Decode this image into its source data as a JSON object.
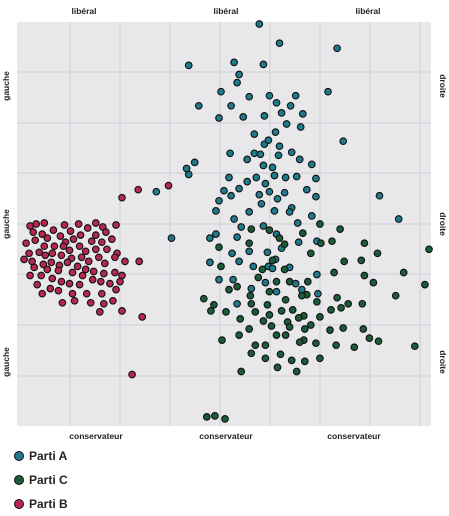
{
  "chart_data": {
    "type": "scatter",
    "xlim": [
      0,
      410
    ],
    "ylim": [
      0,
      400
    ],
    "grid": true,
    "legend_placement": "bottom-left",
    "top_labels": [
      "libéral",
      "libéral",
      "libéral"
    ],
    "bottom_labels": [
      "conservateur",
      "conservateur",
      "conservateur"
    ],
    "left_labels": [
      "gauche",
      "gauche",
      "gauche"
    ],
    "right_labels": [
      "droite",
      "droite",
      "droite"
    ],
    "series": [
      {
        "name": "Parti A",
        "color": "#1f7a8c",
        "points": [
          [
            240,
            398
          ],
          [
            260,
            379
          ],
          [
            317,
            374
          ],
          [
            170,
            357
          ],
          [
            215,
            360
          ],
          [
            220,
            348
          ],
          [
            244,
            358
          ],
          [
            202,
            331
          ],
          [
            218,
            340
          ],
          [
            230,
            326
          ],
          [
            250,
            327
          ],
          [
            257,
            320
          ],
          [
            276,
            327
          ],
          [
            308,
            331
          ],
          [
            180,
            317
          ],
          [
            200,
            305
          ],
          [
            224,
            306
          ],
          [
            212,
            317
          ],
          [
            245,
            307
          ],
          [
            262,
            310
          ],
          [
            271,
            317
          ],
          [
            283,
            309
          ],
          [
            281,
            296
          ],
          [
            267,
            299
          ],
          [
            256,
            291
          ],
          [
            235,
            289
          ],
          [
            245,
            279
          ],
          [
            211,
            270
          ],
          [
            260,
            277
          ],
          [
            235,
            270
          ],
          [
            323,
            282
          ],
          [
            249,
            283
          ],
          [
            228,
            264
          ],
          [
            176,
            261
          ],
          [
            244,
            258
          ],
          [
            253,
            256
          ],
          [
            259,
            268
          ],
          [
            241,
            269
          ],
          [
            272,
            271
          ],
          [
            280,
            264
          ],
          [
            292,
            259
          ],
          [
            277,
            247
          ],
          [
            296,
            245
          ],
          [
            237,
            246
          ],
          [
            246,
            240
          ],
          [
            170,
            249
          ],
          [
            210,
            246
          ],
          [
            168,
            255
          ],
          [
            255,
            248
          ],
          [
            266,
            246
          ],
          [
            205,
            233
          ],
          [
            220,
            235
          ],
          [
            228,
            242
          ],
          [
            240,
            229
          ],
          [
            250,
            232
          ],
          [
            265,
            231
          ],
          [
            287,
            234
          ],
          [
            296,
            227
          ],
          [
            138,
            232
          ],
          [
            200,
            223
          ],
          [
            212,
            228
          ],
          [
            258,
            225
          ],
          [
            272,
            216
          ],
          [
            242,
            220
          ],
          [
            255,
            213
          ],
          [
            215,
            205
          ],
          [
            230,
            212
          ],
          [
            197,
            213
          ],
          [
            270,
            212
          ],
          [
            292,
            208
          ],
          [
            222,
            197
          ],
          [
            244,
            198
          ],
          [
            278,
            201
          ],
          [
            197,
            190
          ],
          [
            257,
            190
          ],
          [
            297,
            183
          ],
          [
            359,
            228
          ],
          [
            378,
            205
          ],
          [
            153,
            186
          ],
          [
            191,
            186
          ],
          [
            218,
            187
          ],
          [
            213,
            171
          ],
          [
            230,
            173
          ],
          [
            248,
            172
          ],
          [
            262,
            176
          ],
          [
            279,
            182
          ],
          [
            256,
            165
          ],
          [
            220,
            163
          ],
          [
            234,
            158
          ],
          [
            249,
            158
          ],
          [
            191,
            162
          ],
          [
            200,
            145
          ],
          [
            270,
            157
          ],
          [
            297,
            150
          ],
          [
            214,
            145
          ],
          [
            246,
            142
          ],
          [
            253,
            156
          ],
          [
            232,
            136
          ],
          [
            282,
            135
          ],
          [
            218,
            121
          ],
          [
            298,
            131
          ],
          [
            257,
            133
          ],
          [
            276,
            141
          ]
        ]
      },
      {
        "name": "Parti C",
        "color": "#1a5c38",
        "points": [
          [
            300,
            200
          ],
          [
            320,
            195
          ],
          [
            232,
            195
          ],
          [
            250,
            194
          ],
          [
            283,
            191
          ],
          [
            230,
            181
          ],
          [
            260,
            186
          ],
          [
            312,
            183
          ],
          [
            200,
            177
          ],
          [
            344,
            181
          ],
          [
            265,
            180
          ],
          [
            291,
            171
          ],
          [
            301,
            181
          ],
          [
            408,
            175
          ],
          [
            357,
            171
          ],
          [
            202,
            158
          ],
          [
            253,
            164
          ],
          [
            324,
            163
          ],
          [
            341,
            164
          ],
          [
            243,
            155
          ],
          [
            265,
            155
          ],
          [
            314,
            152
          ],
          [
            344,
            149
          ],
          [
            353,
            142
          ],
          [
            383,
            152
          ],
          [
            404,
            140
          ],
          [
            218,
            138
          ],
          [
            231,
            129
          ],
          [
            288,
            143
          ],
          [
            239,
            147
          ],
          [
            270,
            143
          ],
          [
            210,
            135
          ],
          [
            257,
            143
          ],
          [
            250,
            133
          ],
          [
            287,
            130
          ],
          [
            317,
            127
          ],
          [
            321,
            117
          ],
          [
            232,
            121
          ],
          [
            266,
            125
          ],
          [
            282,
            129
          ],
          [
            248,
            120
          ],
          [
            236,
            113
          ],
          [
            262,
            114
          ],
          [
            273,
            115
          ],
          [
            297,
            123
          ],
          [
            185,
            126
          ],
          [
            207,
            113
          ],
          [
            328,
            121
          ],
          [
            375,
            129
          ],
          [
            195,
            120
          ],
          [
            250,
            110
          ],
          [
            284,
            109
          ],
          [
            311,
            115
          ],
          [
            342,
            121
          ],
          [
            244,
            104
          ],
          [
            268,
            103
          ],
          [
            279,
            107
          ],
          [
            300,
            108
          ],
          [
            310,
            95
          ],
          [
            230,
            96
          ],
          [
            252,
            99
          ],
          [
            270,
            98
          ],
          [
            285,
            96
          ],
          [
            323,
            97
          ],
          [
            192,
            114
          ],
          [
            221,
            106
          ],
          [
            220,
            90
          ],
          [
            257,
            90
          ],
          [
            266,
            90
          ],
          [
            284,
            85
          ],
          [
            291,
            100
          ],
          [
            343,
            96
          ],
          [
            349,
            87
          ],
          [
            358,
            84
          ],
          [
            203,
            85
          ],
          [
            236,
            80
          ],
          [
            246,
            80
          ],
          [
            280,
            83
          ],
          [
            296,
            82
          ],
          [
            316,
            80
          ],
          [
            394,
            79
          ],
          [
            246,
            67
          ],
          [
            261,
            71
          ],
          [
            272,
            65
          ],
          [
            285,
            64
          ],
          [
            300,
            67
          ],
          [
            334,
            78
          ],
          [
            232,
            72
          ],
          [
            258,
            58
          ],
          [
            277,
            54
          ],
          [
            222,
            54
          ],
          [
            188,
            9
          ],
          [
            196,
            10
          ],
          [
            206,
            7
          ]
        ]
      },
      {
        "name": "Parti B",
        "color": "#b5294e",
        "points": [
          [
            13,
            198
          ],
          [
            19,
            200
          ],
          [
            27,
            201
          ],
          [
            36,
            194
          ],
          [
            47,
            199
          ],
          [
            53,
            193
          ],
          [
            61,
            200
          ],
          [
            70,
            196
          ],
          [
            78,
            201
          ],
          [
            85,
            197
          ],
          [
            88,
            192
          ],
          [
            98,
            199
          ],
          [
            16,
            192
          ],
          [
            25,
            190
          ],
          [
            30,
            186
          ],
          [
            43,
            188
          ],
          [
            48,
            182
          ],
          [
            56,
            185
          ],
          [
            63,
            189
          ],
          [
            74,
            183
          ],
          [
            78,
            189
          ],
          [
            84,
            182
          ],
          [
            94,
            185
          ],
          [
            9,
            181
          ],
          [
            18,
            184
          ],
          [
            27,
            178
          ],
          [
            37,
            178
          ],
          [
            46,
            178
          ],
          [
            52,
            174
          ],
          [
            62,
            178
          ],
          [
            68,
            173
          ],
          [
            78,
            175
          ],
          [
            89,
            175
          ],
          [
            99,
            171
          ],
          [
            12,
            171
          ],
          [
            22,
            172
          ],
          [
            28,
            169
          ],
          [
            35,
            171
          ],
          [
            44,
            169
          ],
          [
            54,
            166
          ],
          [
            64,
            167
          ],
          [
            71,
            163
          ],
          [
            81,
            167
          ],
          [
            87,
            161
          ],
          [
            97,
            167
          ],
          [
            107,
            163
          ],
          [
            7,
            165
          ],
          [
            15,
            163
          ],
          [
            26,
            160
          ],
          [
            34,
            162
          ],
          [
            42,
            159
          ],
          [
            50,
            162
          ],
          [
            60,
            158
          ],
          [
            68,
            155
          ],
          [
            76,
            153
          ],
          [
            86,
            151
          ],
          [
            97,
            152
          ],
          [
            104,
            149
          ],
          [
            17,
            157
          ],
          [
            30,
            155
          ],
          [
            41,
            154
          ],
          [
            55,
            152
          ],
          [
            65,
            149
          ],
          [
            75,
            145
          ],
          [
            83,
            143
          ],
          [
            92,
            141
          ],
          [
            102,
            143
          ],
          [
            13,
            149
          ],
          [
            24,
            149
          ],
          [
            35,
            146
          ],
          [
            44,
            143
          ],
          [
            52,
            141
          ],
          [
            62,
            140
          ],
          [
            20,
            140
          ],
          [
            33,
            136
          ],
          [
            41,
            134
          ],
          [
            55,
            131
          ],
          [
            69,
            131
          ],
          [
            84,
            131
          ],
          [
            98,
            135
          ],
          [
            25,
            131
          ],
          [
            45,
            122
          ],
          [
            57,
            124
          ],
          [
            73,
            122
          ],
          [
            86,
            121
          ],
          [
            95,
            124
          ],
          [
            82,
            113
          ],
          [
            104,
            114
          ],
          [
            121,
            163
          ],
          [
            124,
            108
          ],
          [
            104,
            226
          ],
          [
            120,
            234
          ],
          [
            150,
            238
          ],
          [
            114,
            51
          ]
        ]
      }
    ]
  }
}
